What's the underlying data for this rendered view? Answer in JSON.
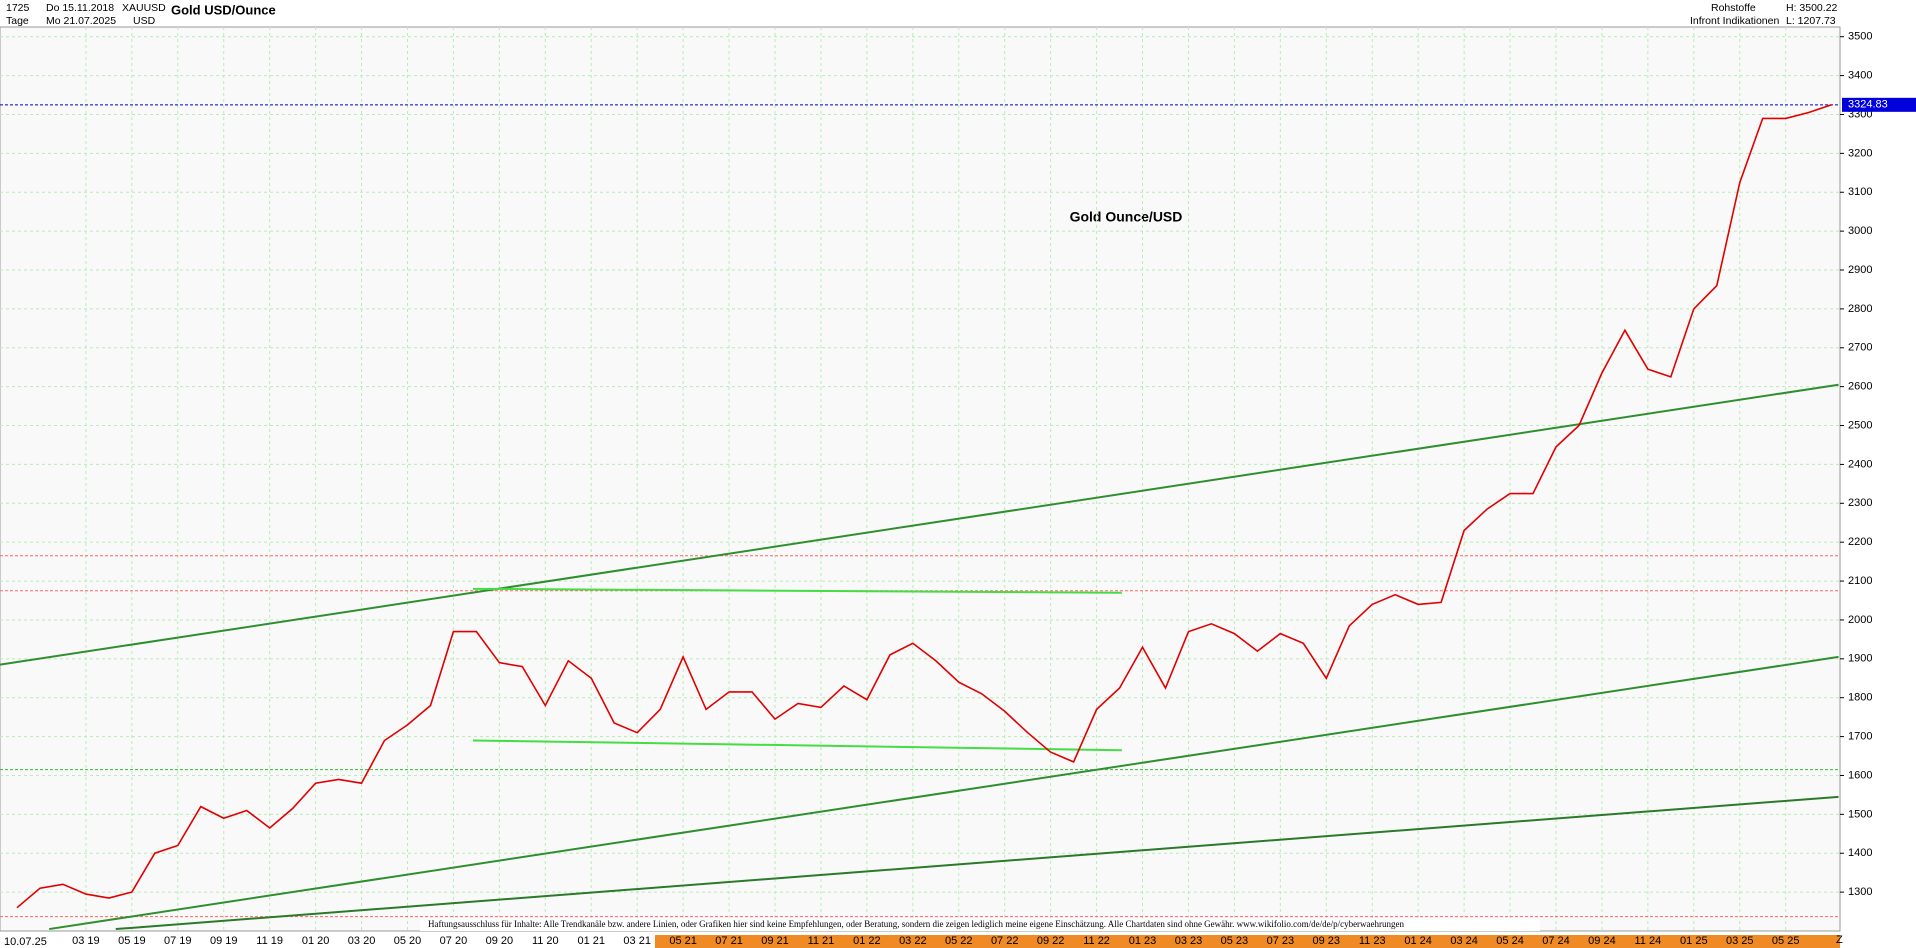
{
  "chart_data": {
    "type": "line",
    "bars": "1725",
    "period": "Tage",
    "from": "Do 15.11.2018",
    "to": "Mo 21.07.2025",
    "symbol": "XAUUSD",
    "currency": "USD",
    "name": "Gold USD/Ounce",
    "market": "Rohstoffe",
    "source": "Infront Indikationen",
    "high": "H: 3500.22",
    "low": "L: 1207.73",
    "title": "Gold Ounce/USD",
    "disclaimer": "Haftungsausschluss für Inhalte: Alle Trendkanäle bzw. andere Linien, oder Grafiken hier sind keine Empfehlungen, oder Beratung, sondern die zeigen lediglich meine eigene Einschätzung. Alle Chartdaten sind ohne Gewähr.  www.wikifolio.com/de/de/p/cyberwaehrungen",
    "x_first_label": "10.07.25",
    "x_end_label": "Z",
    "last_price": 3324.83,
    "categories": [
      null,
      null,
      null,
      "03 19",
      null,
      "05 19",
      null,
      "07 19",
      null,
      "09 19",
      null,
      "11 19",
      null,
      "01 20",
      null,
      "03 20",
      null,
      "05 20",
      null,
      "07 20",
      null,
      "09 20",
      null,
      "11 20",
      null,
      "01 21",
      null,
      "03 21",
      null,
      "05 21",
      null,
      "07 21",
      null,
      "09 21",
      null,
      "11 21",
      null,
      "01 22",
      null,
      "03 22",
      null,
      "05 22",
      null,
      "07 22",
      null,
      "09 22",
      null,
      "11 22",
      null,
      "01 23",
      null,
      "03 23",
      null,
      "05 23",
      null,
      "07 23",
      null,
      "09 23",
      null,
      "11 23",
      null,
      "01 24",
      null,
      "03 24",
      null,
      "05 24",
      null,
      "07 24",
      null,
      "09 24",
      null,
      "11 24",
      null,
      "01 25",
      null,
      "03 25",
      null,
      "05 25",
      null,
      null
    ],
    "series": [
      {
        "color": "#e00000",
        "values": [
          1260,
          1310,
          1320,
          1295,
          1285,
          1300,
          1400,
          1420,
          1520,
          1490,
          1510,
          1465,
          1515,
          1580,
          1590,
          1580,
          1690,
          1730,
          1780,
          1970,
          1970,
          1890,
          1880,
          1780,
          1895,
          1850,
          1735,
          1710,
          1770,
          1905,
          1770,
          1815,
          1815,
          1745,
          1785,
          1775,
          1830,
          1795,
          1910,
          1940,
          1895,
          1840,
          1810,
          1765,
          1710,
          1660,
          1635,
          1770,
          1825,
          1930,
          1825,
          1970,
          1990,
          1965,
          1920,
          1965,
          1940,
          1850,
          1985,
          2040,
          2065,
          2040,
          2045,
          2230,
          2285,
          2325,
          2325,
          2445,
          2500,
          2635,
          2745,
          2645,
          2625,
          2800,
          2860,
          3125,
          3290,
          3290,
          3305,
          3325
        ]
      }
    ],
    "trendlines": [
      {
        "start": [
          -0.74,
          1885
        ],
        "end": [
          79.3,
          2605
        ],
        "color": "#2f8f2f"
      },
      {
        "start": [
          1.4,
          1205
        ],
        "end": [
          79.3,
          1905
        ],
        "color": "#2f8f2f"
      },
      {
        "start": [
          4.3,
          1205
        ],
        "end": [
          79.3,
          1545
        ],
        "color": "#2a7a2a"
      },
      {
        "start": [
          19.85,
          2080
        ],
        "end": [
          48.1,
          2070
        ],
        "color": "#44dd44"
      },
      {
        "start": [
          19.85,
          1690
        ],
        "end": [
          48.1,
          1665
        ],
        "color": "#44dd44"
      }
    ],
    "hlines": [
      {
        "value": 3324.83,
        "color": "#0000cc"
      },
      {
        "value": 2165,
        "color": "#ff6666"
      },
      {
        "value": 2075,
        "color": "#ff6666"
      },
      {
        "value": 1615,
        "color": "#33bb33"
      },
      {
        "value": 1237,
        "color": "#ff6666"
      }
    ],
    "ylim": [
      1200,
      3525
    ],
    "yticks": [
      1300,
      1400,
      1500,
      1600,
      1700,
      1800,
      1900,
      2000,
      2100,
      2200,
      2300,
      2400,
      2500,
      2600,
      2700,
      2800,
      2900,
      3000,
      3100,
      3200,
      3300,
      3400,
      3500
    ],
    "grid": true
  }
}
